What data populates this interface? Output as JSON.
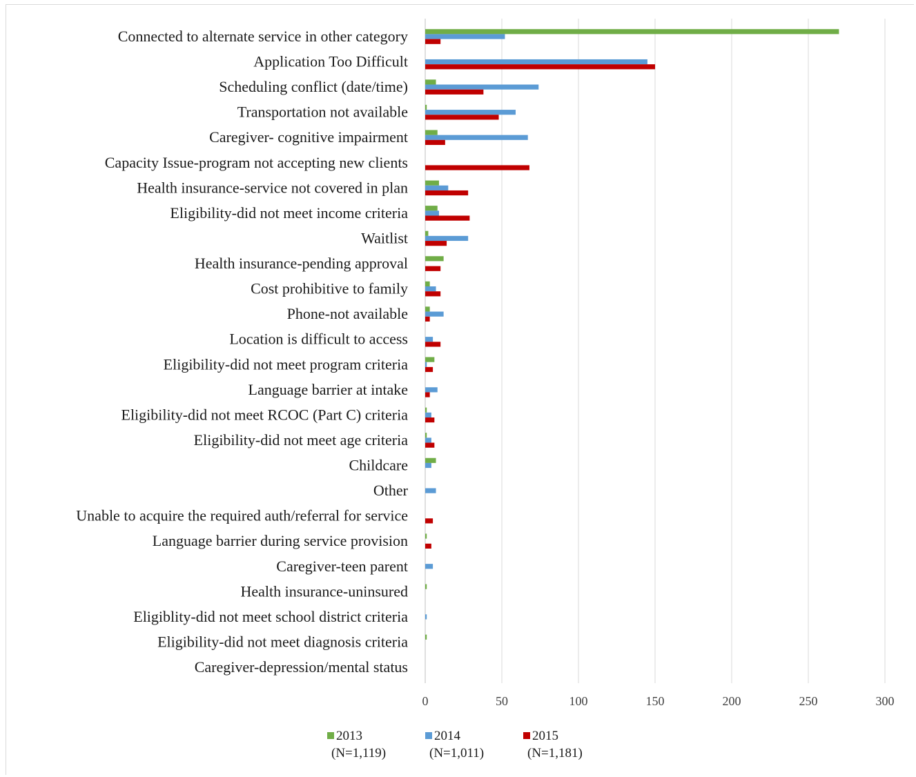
{
  "chart_data": {
    "type": "bar",
    "orientation": "horizontal",
    "title": "",
    "xlabel": "",
    "ylabel": "",
    "xlim": [
      0,
      300
    ],
    "x_ticks": [
      "0",
      "50",
      "100",
      "150",
      "200",
      "250",
      "300"
    ],
    "grid": "vertical",
    "legend_position": "bottom",
    "categories": [
      "Connected to alternate service in other category",
      "Application Too Difficult",
      "Scheduling conflict (date/time)",
      "Transportation not available",
      "Caregiver- cognitive impairment",
      "Capacity Issue-program not accepting new clients",
      "Health insurance-service not covered in plan",
      "Eligibility-did not meet income criteria",
      "Waitlist",
      "Health insurance-pending approval",
      "Cost prohibitive to family",
      "Phone-not available",
      "Location is difficult to access",
      "Eligibility-did not meet program criteria",
      "Language barrier at intake",
      "Eligibility-did not meet RCOC (Part C) criteria",
      "Eligibility-did not meet age criteria",
      "Childcare",
      "Other",
      "Unable to acquire the required auth/referral for service",
      "Language barrier during service provision",
      "Caregiver-teen parent",
      "Health insurance-uninsured",
      "Eligiblity-did not meet school district criteria",
      "Eligibility-did not meet diagnosis criteria",
      "Caregiver-depression/mental status"
    ],
    "series": [
      {
        "name": "2013",
        "sublabel": "(N=1,119)",
        "color": "#70ad47",
        "values": [
          270,
          0,
          7,
          1,
          8,
          0,
          9,
          8,
          2,
          12,
          3,
          3,
          0,
          6,
          0,
          1,
          1,
          7,
          0,
          0,
          1,
          0,
          1,
          0,
          1,
          0
        ]
      },
      {
        "name": "2014",
        "sublabel": "(N=1,011)",
        "color": "#5b9bd5",
        "values": [
          52,
          145,
          74,
          59,
          67,
          0,
          15,
          9,
          28,
          0,
          7,
          12,
          5,
          1,
          8,
          4,
          4,
          4,
          7,
          0,
          0,
          5,
          0,
          1,
          0,
          0
        ]
      },
      {
        "name": "2015",
        "sublabel": "(N=1,181)",
        "color": "#c00000",
        "values": [
          10,
          150,
          38,
          48,
          13,
          68,
          28,
          29,
          14,
          10,
          10,
          3,
          10,
          5,
          3,
          6,
          6,
          0,
          0,
          5,
          4,
          0,
          0,
          0,
          0,
          0
        ]
      }
    ]
  }
}
